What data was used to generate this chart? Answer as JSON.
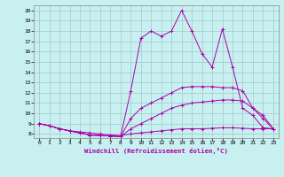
{
  "background_color": "#c8f0f0",
  "line_color": "#aa00aa",
  "xlabel": "Windchill (Refroidissement éolien,°C)",
  "xlim": [
    -0.5,
    23.5
  ],
  "ylim": [
    7.6,
    20.5
  ],
  "xticks": [
    0,
    1,
    2,
    3,
    4,
    5,
    6,
    7,
    8,
    9,
    10,
    11,
    12,
    13,
    14,
    15,
    16,
    17,
    18,
    19,
    20,
    21,
    22,
    23
  ],
  "yticks": [
    8,
    9,
    10,
    11,
    12,
    13,
    14,
    15,
    16,
    17,
    18,
    19,
    20
  ],
  "grid_color": "#a0c8c8",
  "curves": [
    [
      9.0,
      8.8,
      8.5,
      8.3,
      8.2,
      8.1,
      8.0,
      7.9,
      7.85,
      8.0,
      8.1,
      8.2,
      8.3,
      8.4,
      8.5,
      8.5,
      8.5,
      8.55,
      8.6,
      8.6,
      8.55,
      8.5,
      8.5,
      8.5
    ],
    [
      9.0,
      8.8,
      8.5,
      8.3,
      8.1,
      7.9,
      7.85,
      7.8,
      7.75,
      8.5,
      9.0,
      9.5,
      10.0,
      10.5,
      10.8,
      11.0,
      11.1,
      11.2,
      11.3,
      11.3,
      11.2,
      10.5,
      9.8,
      8.5
    ],
    [
      9.0,
      8.8,
      8.5,
      8.3,
      8.1,
      7.9,
      7.85,
      7.8,
      7.75,
      9.5,
      10.5,
      11.0,
      11.5,
      12.0,
      12.5,
      12.6,
      12.6,
      12.6,
      12.5,
      12.5,
      12.2,
      10.5,
      9.5,
      8.5
    ],
    [
      9.0,
      8.8,
      8.5,
      8.3,
      8.1,
      7.9,
      7.85,
      7.8,
      7.75,
      12.2,
      17.3,
      18.0,
      17.5,
      18.0,
      20.0,
      18.0,
      15.8,
      14.5,
      18.2,
      14.5,
      10.5,
      9.8,
      8.6,
      8.5
    ]
  ]
}
